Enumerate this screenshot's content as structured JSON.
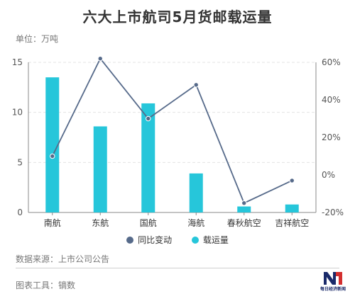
{
  "title": "六大上市航司5月货邮载运量",
  "unit": "单位：万吨",
  "source": "数据来源：上市公司公告",
  "tool": "图表工具：镝数",
  "logo_text": "每日经济新闻",
  "colors": {
    "bar": "#26c6da",
    "line": "#566a8a",
    "grid": "#e3e3e3",
    "axis": "#888888"
  },
  "chart_data": {
    "type": "bar",
    "categories": [
      "南航",
      "东航",
      "国航",
      "海航",
      "春秋航空",
      "吉祥航空"
    ],
    "series": [
      {
        "name": "载运量",
        "type": "bar",
        "axis": "left",
        "values": [
          13.5,
          8.6,
          10.9,
          3.9,
          0.6,
          0.8
        ]
      },
      {
        "name": "同比变动",
        "type": "line",
        "axis": "right",
        "values": [
          0.1,
          0.62,
          0.3,
          0.48,
          -0.15,
          -0.03
        ]
      }
    ],
    "yleft": {
      "lim": [
        0,
        15
      ],
      "ticks": [
        0,
        5,
        10,
        15
      ]
    },
    "yright": {
      "lim": [
        -0.2,
        0.6
      ],
      "ticks": [
        -0.2,
        0,
        0.2,
        0.4,
        0.6
      ],
      "format": "percent"
    },
    "grid": true,
    "legend_position": "bottom"
  }
}
